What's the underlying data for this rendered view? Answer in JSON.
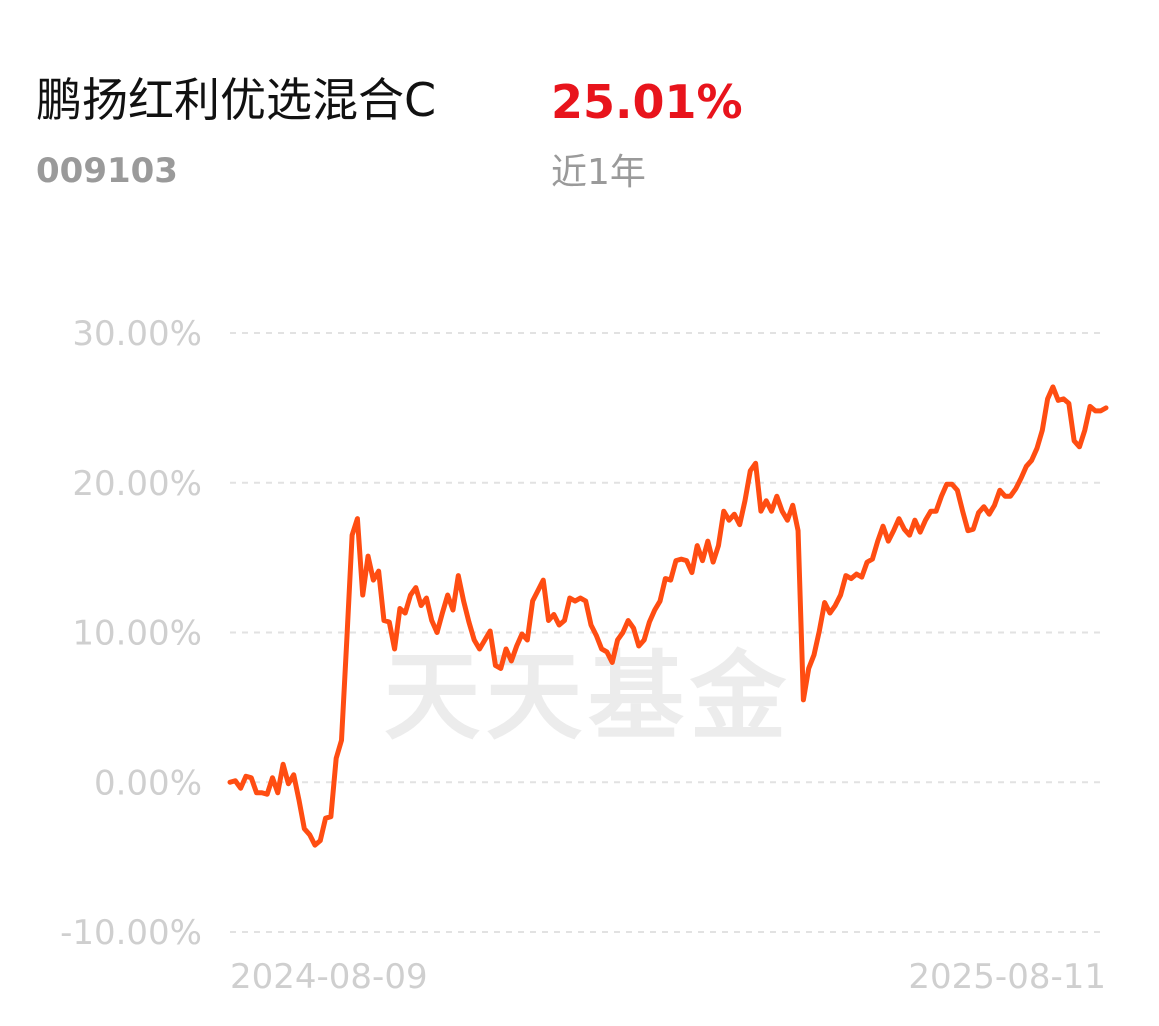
{
  "header": {
    "fund_name": "鹏扬红利优选混合C",
    "fund_code": "009103",
    "return": "25.01%",
    "period": "近1年"
  },
  "chart_data": {
    "type": "line",
    "watermark": "天天基金",
    "color": "#ff4d12",
    "grid": true,
    "ylim": [
      -10,
      30
    ],
    "yticks": [
      {
        "value": -10,
        "label": "-10.00%"
      },
      {
        "value": 0,
        "label": "0.00%"
      },
      {
        "value": 10,
        "label": "10.00%"
      },
      {
        "value": 20,
        "label": "20.00%"
      },
      {
        "value": 30,
        "label": "30.00%"
      }
    ],
    "categories": [
      "2024-08-09",
      null,
      null,
      null,
      null,
      null,
      null,
      null,
      null,
      null,
      null,
      null,
      null,
      null,
      null,
      null,
      null,
      null,
      null,
      null,
      null,
      null,
      null,
      null,
      null,
      null,
      null,
      null,
      null,
      null,
      null,
      null,
      null,
      null,
      null,
      null,
      null,
      null,
      null,
      null,
      null,
      null,
      null,
      null,
      null,
      null,
      null,
      null,
      null,
      null,
      null,
      null,
      null,
      null,
      null,
      null,
      null,
      null,
      null,
      null,
      null,
      null,
      null,
      null,
      null,
      null,
      null,
      null,
      null,
      null,
      null,
      null,
      null,
      null,
      null,
      null,
      null,
      null,
      null,
      null,
      null,
      null,
      null,
      null,
      null,
      null,
      null,
      null,
      null,
      null,
      null,
      null,
      null,
      null,
      null,
      null,
      null,
      null,
      null,
      null,
      null,
      null,
      null,
      null,
      null,
      null,
      null,
      null,
      null,
      null,
      null,
      null,
      null,
      null,
      null,
      null,
      null,
      null,
      null,
      null,
      null,
      null,
      null,
      null,
      null,
      null,
      null,
      null,
      null,
      null,
      null,
      null,
      null,
      null,
      null,
      null,
      null,
      null,
      null,
      null,
      null,
      null,
      null,
      null,
      null,
      null,
      null,
      null,
      null,
      null,
      null,
      null,
      null,
      null,
      null,
      null,
      null,
      null,
      null,
      null,
      null,
      null,
      null,
      null,
      null,
      "2025-08-11"
    ],
    "values": [
      0,
      0.1,
      -0.4,
      0.4,
      0.3,
      -0.7,
      -0.7,
      -0.8,
      0.3,
      -0.7,
      1.2,
      -0.1,
      0.5,
      -1.2,
      -3.1,
      -3.5,
      -4.2,
      -3.9,
      -2.4,
      -2.3,
      1.6,
      2.8,
      9.5,
      16.5,
      17.6,
      12.5,
      15.1,
      13.5,
      14.1,
      10.8,
      10.7,
      8.9,
      11.6,
      11.3,
      12.5,
      13.0,
      11.8,
      12.3,
      10.8,
      10.0,
      11.3,
      12.5,
      11.5,
      13.8,
      12.1,
      10.7,
      9.5,
      8.9,
      9.5,
      10.1,
      7.8,
      7.6,
      8.9,
      8.1,
      9.1,
      9.9,
      9.5,
      12.1,
      12.8,
      13.5,
      10.8,
      11.2,
      10.5,
      10.8,
      12.3,
      12.1,
      12.3,
      12.1,
      10.5,
      9.8,
      8.9,
      8.7,
      8.0,
      9.5,
      10.0,
      10.8,
      10.3,
      9.1,
      9.5,
      10.7,
      11.5,
      12.1,
      13.6,
      13.5,
      14.8,
      14.9,
      14.8,
      14.0,
      15.8,
      14.8,
      16.1,
      14.7,
      15.8,
      18.1,
      17.5,
      17.9,
      17.2,
      18.8,
      20.8,
      21.3,
      18.1,
      18.8,
      18.1,
      19.1,
      18.1,
      17.5,
      18.5,
      16.8,
      5.5,
      7.6,
      8.5,
      10.1,
      12.0,
      11.3,
      11.8,
      12.5,
      13.8,
      13.6,
      13.9,
      13.7,
      14.7,
      14.9,
      16.1,
      17.1,
      16.1,
      16.8,
      17.6,
      16.9,
      16.5,
      17.5,
      16.7,
      17.5,
      18.1,
      18.1,
      19.1,
      19.9,
      19.9,
      19.5,
      18.1,
      16.8,
      16.9,
      18.0,
      18.4,
      17.9,
      18.5,
      19.5,
      19.1,
      19.1,
      19.6,
      20.3,
      21.1,
      21.5,
      22.3,
      23.5,
      25.6,
      26.4,
      25.5,
      25.6,
      25.3,
      22.8,
      22.4,
      23.5,
      25.1,
      24.8,
      24.8,
      25.0
    ]
  }
}
